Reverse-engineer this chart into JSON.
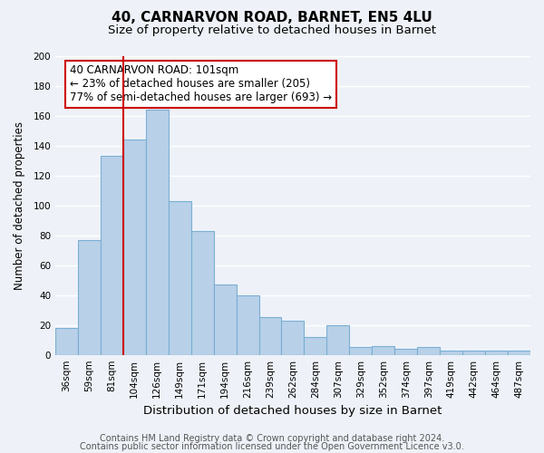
{
  "title": "40, CARNARVON ROAD, BARNET, EN5 4LU",
  "subtitle": "Size of property relative to detached houses in Barnet",
  "xlabel": "Distribution of detached houses by size in Barnet",
  "ylabel": "Number of detached properties",
  "categories": [
    "36sqm",
    "59sqm",
    "81sqm",
    "104sqm",
    "126sqm",
    "149sqm",
    "171sqm",
    "194sqm",
    "216sqm",
    "239sqm",
    "262sqm",
    "284sqm",
    "307sqm",
    "329sqm",
    "352sqm",
    "374sqm",
    "397sqm",
    "419sqm",
    "442sqm",
    "464sqm",
    "487sqm"
  ],
  "values": [
    18,
    77,
    133,
    144,
    164,
    103,
    83,
    47,
    40,
    25,
    23,
    12,
    20,
    5,
    6,
    4,
    5,
    3,
    3,
    3,
    3
  ],
  "bar_color": "#b8d0e8",
  "bar_edge_color": "#7aafd4",
  "vline_x_index": 3,
  "vline_color": "#cc0000",
  "annotation_box_text": "40 CARNARVON ROAD: 101sqm\n← 23% of detached houses are smaller (205)\n77% of semi-detached houses are larger (693) →",
  "annotation_box_color": "#ffffff",
  "annotation_box_edge_color": "#cc0000",
  "ylim": [
    0,
    200
  ],
  "yticks": [
    0,
    20,
    40,
    60,
    80,
    100,
    120,
    140,
    160,
    180,
    200
  ],
  "footnote1": "Contains HM Land Registry data © Crown copyright and database right 2024.",
  "footnote2": "Contains public sector information licensed under the Open Government Licence v3.0.",
  "bg_color": "#eef2f8",
  "plot_bg_color": "#eef2f8",
  "grid_color": "#ffffff",
  "title_fontsize": 11,
  "subtitle_fontsize": 9.5,
  "xlabel_fontsize": 9.5,
  "ylabel_fontsize": 8.5,
  "tick_fontsize": 7.5,
  "annotation_fontsize": 8.5,
  "footnote_fontsize": 7
}
